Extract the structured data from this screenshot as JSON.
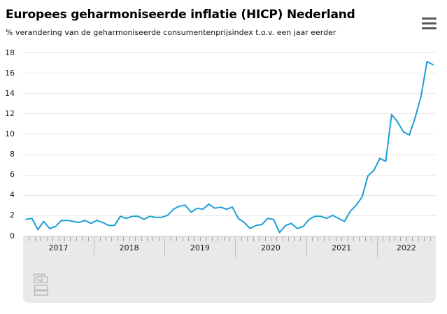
{
  "header": {
    "title": "Europees geharmoniseerde inflatie (HICP) Nederland",
    "subtitle": "% verandering van de geharmoniseerde consumentenprijsindex t.o.v. een jaar eerder",
    "menu_icon": "hamburger-icon"
  },
  "chart_data": {
    "type": "line",
    "title": "Europees geharmoniseerde inflatie (HICP) Nederland",
    "subtitle": "% verandering van de geharmoniseerde consumentenprijsindex t.o.v. een jaar eerder",
    "frequency": "monthly",
    "x_start": "2017-01",
    "x_end": "2022-10",
    "x_tick_labels": [
      "2017",
      "2018",
      "2019",
      "2020",
      "2021",
      "2022"
    ],
    "y_tick_labels": [
      0,
      2,
      4,
      6,
      8,
      10,
      12,
      14,
      16,
      18
    ],
    "ylim": [
      0,
      18
    ],
    "grid": true,
    "legend": false,
    "line_color": "#1b9fd4",
    "series": [
      {
        "name": "HICP Nederland (% t.o.v. een jaar eerder)",
        "color": "#1b9fd4",
        "values": [
          1.6,
          1.7,
          0.6,
          1.4,
          0.7,
          0.9,
          1.5,
          1.5,
          1.4,
          1.3,
          1.5,
          1.2,
          1.5,
          1.3,
          1.0,
          1.0,
          1.9,
          1.7,
          1.9,
          1.9,
          1.6,
          1.9,
          1.8,
          1.8,
          2.0,
          2.6,
          2.9,
          3.0,
          2.3,
          2.7,
          2.6,
          3.1,
          2.7,
          2.8,
          2.6,
          2.8,
          1.7,
          1.3,
          0.7,
          1.0,
          1.1,
          1.7,
          1.6,
          0.3,
          1.0,
          1.2,
          0.7,
          0.9,
          1.6,
          1.9,
          1.9,
          1.7,
          2.0,
          1.7,
          1.4,
          2.4,
          3.0,
          3.8,
          5.9,
          6.4,
          7.6,
          7.3,
          11.9,
          11.2,
          10.2,
          9.9,
          11.6,
          13.7,
          17.1,
          16.8
        ]
      }
    ]
  },
  "footer": {
    "logo": "cbs-logo"
  }
}
